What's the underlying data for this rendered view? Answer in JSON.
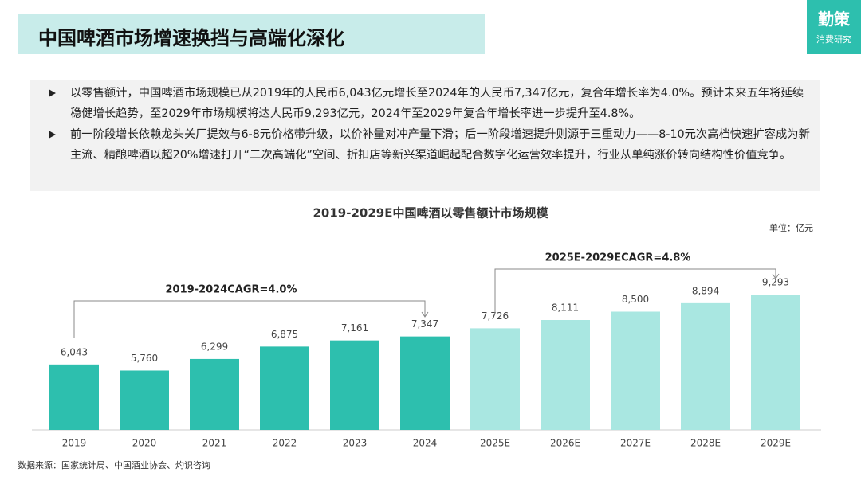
{
  "header": {
    "title": "中国啤酒市场增速换挡与高端化深化",
    "logo": "勤策",
    "logo_sub": "消费研究"
  },
  "bullets": [
    "以零售额计，中国啤酒市场规模已从2019年的人民币6,043亿元增长至2024年的人民币7,347亿元，复合年增长率为4.0%。预计未来五年将延续稳健增长趋势，至2029年市场规模将达人民币9,293亿元，2024年至2029年复合年增长率进一步提升至4.8%。",
    "前一阶段增长依赖龙头关厂提效与6-8元价格带升级，以价补量对冲产量下滑；后一阶段增速提升则源于三重动力——8-10元次高档快速扩容成为新主流、精酿啤酒以超20%增速打开“二次高端化”空间、折扣店等新兴渠道崛起配合数字化运营效率提升，行业从单纯涨价转向结构性价值竞争。"
  ],
  "chart_data": {
    "type": "bar",
    "title": "2019-2029E中国啤酒以零售额计市场规模",
    "unit": "单位：亿元",
    "categories": [
      "2019",
      "2020",
      "2021",
      "2022",
      "2023",
      "2024",
      "2025E",
      "2026E",
      "2027E",
      "2028E",
      "2029E"
    ],
    "values": [
      6043,
      5760,
      6299,
      6875,
      7161,
      7347,
      7726,
      8111,
      8500,
      8894,
      9293
    ],
    "value_labels": [
      "6,043",
      "5,760",
      "6,299",
      "6,875",
      "7,161",
      "7,347",
      "7,726",
      "8,111",
      "8,500",
      "8,894",
      "9,293"
    ],
    "colors": [
      "#2dbfae",
      "#2dbfae",
      "#2dbfae",
      "#2dbfae",
      "#2dbfae",
      "#2dbfae",
      "#a9e7e1",
      "#a9e7e1",
      "#a9e7e1",
      "#a9e7e1",
      "#a9e7e1"
    ],
    "ylim": [
      3000,
      10000
    ],
    "annotations": [
      "2019-2024CAGR=4.0%",
      "2025E-2029ECAGR=4.8%"
    ]
  },
  "source": "数据来源：国家统计局、中国酒业协会、灼识咨询"
}
